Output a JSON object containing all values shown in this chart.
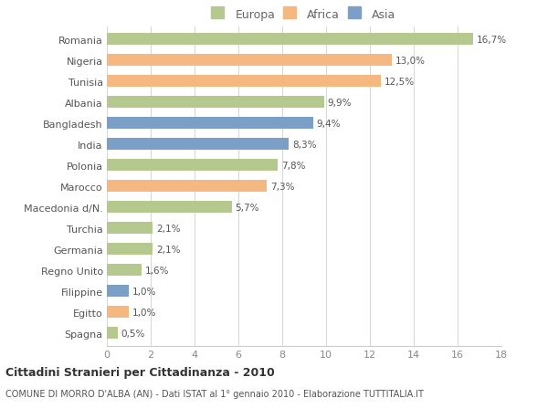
{
  "categories": [
    "Romania",
    "Nigeria",
    "Tunisia",
    "Albania",
    "Bangladesh",
    "India",
    "Polonia",
    "Marocco",
    "Macedonia d/N.",
    "Turchia",
    "Germania",
    "Regno Unito",
    "Filippine",
    "Egitto",
    "Spagna"
  ],
  "values": [
    16.7,
    13.0,
    12.5,
    9.9,
    9.4,
    8.3,
    7.8,
    7.3,
    5.7,
    2.1,
    2.1,
    1.6,
    1.0,
    1.0,
    0.5
  ],
  "labels": [
    "16,7%",
    "13,0%",
    "12,5%",
    "9,9%",
    "9,4%",
    "8,3%",
    "7,8%",
    "7,3%",
    "5,7%",
    "2,1%",
    "2,1%",
    "1,6%",
    "1,0%",
    "1,0%",
    "0,5%"
  ],
  "continents": [
    "Europa",
    "Africa",
    "Africa",
    "Europa",
    "Asia",
    "Asia",
    "Europa",
    "Africa",
    "Europa",
    "Europa",
    "Europa",
    "Europa",
    "Asia",
    "Africa",
    "Europa"
  ],
  "colors": {
    "Europa": "#b5c98e",
    "Africa": "#f5b880",
    "Asia": "#7b9fc7"
  },
  "legend_labels": [
    "Europa",
    "Africa",
    "Asia"
  ],
  "title": "Cittadini Stranieri per Cittadinanza - 2010",
  "subtitle": "COMUNE DI MORRO D'ALBA (AN) - Dati ISTAT al 1° gennaio 2010 - Elaborazione TUTTITALIA.IT",
  "xlim": [
    0,
    18
  ],
  "xticks": [
    0,
    2,
    4,
    6,
    8,
    10,
    12,
    14,
    16,
    18
  ],
  "background_color": "#ffffff",
  "grid_color": "#d8d8d8"
}
